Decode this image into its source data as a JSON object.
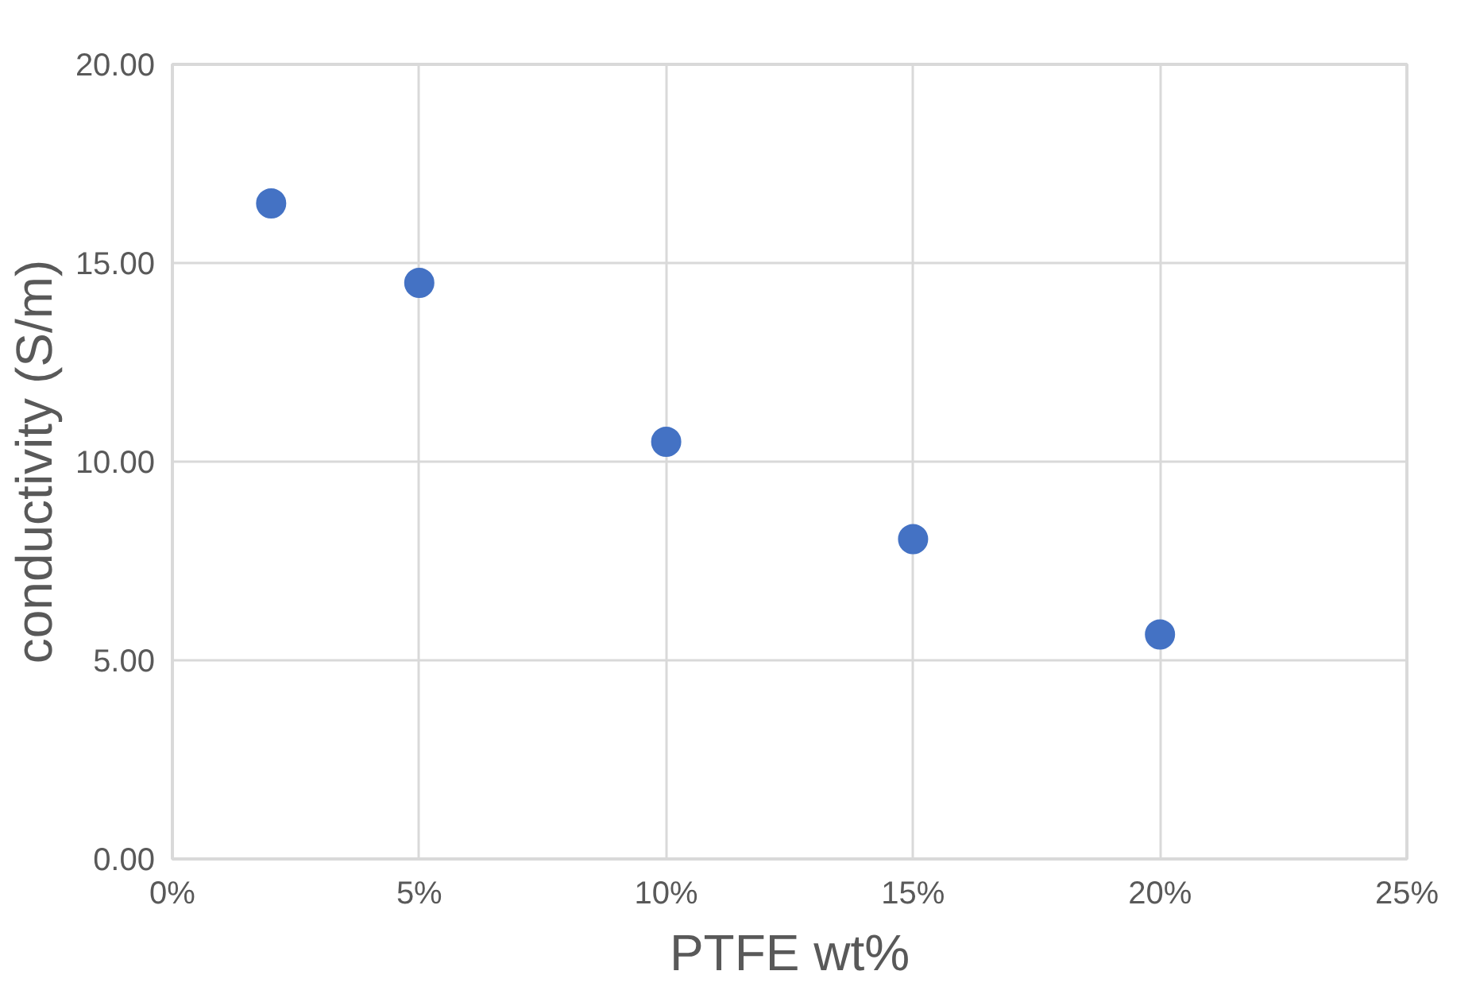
{
  "chart_data": {
    "type": "scatter",
    "xlabel": "PTFE wt%",
    "ylabel": "conductivity (S/m)",
    "x": [
      2,
      5,
      10,
      15,
      20
    ],
    "series": [
      {
        "color": "#4472c4",
        "values": [
          16.5,
          14.5,
          10.5,
          8.05,
          5.65
        ]
      }
    ],
    "xlim": [
      0,
      25
    ],
    "xticks": [
      {
        "value": 0,
        "label": "0%"
      },
      {
        "value": 5,
        "label": "5%"
      },
      {
        "value": 10,
        "label": "10%"
      },
      {
        "value": 15,
        "label": "15%"
      },
      {
        "value": 20,
        "label": "20%"
      },
      {
        "value": 25,
        "label": "25%"
      }
    ],
    "ylim": [
      0,
      20
    ],
    "yticks": [
      {
        "value": 0,
        "label": "0.00"
      },
      {
        "value": 5,
        "label": "5.00"
      },
      {
        "value": 10,
        "label": "10.00"
      },
      {
        "value": 15,
        "label": "15.00"
      },
      {
        "value": 20,
        "label": "20.00"
      }
    ],
    "grid": true,
    "marker": "circle"
  }
}
